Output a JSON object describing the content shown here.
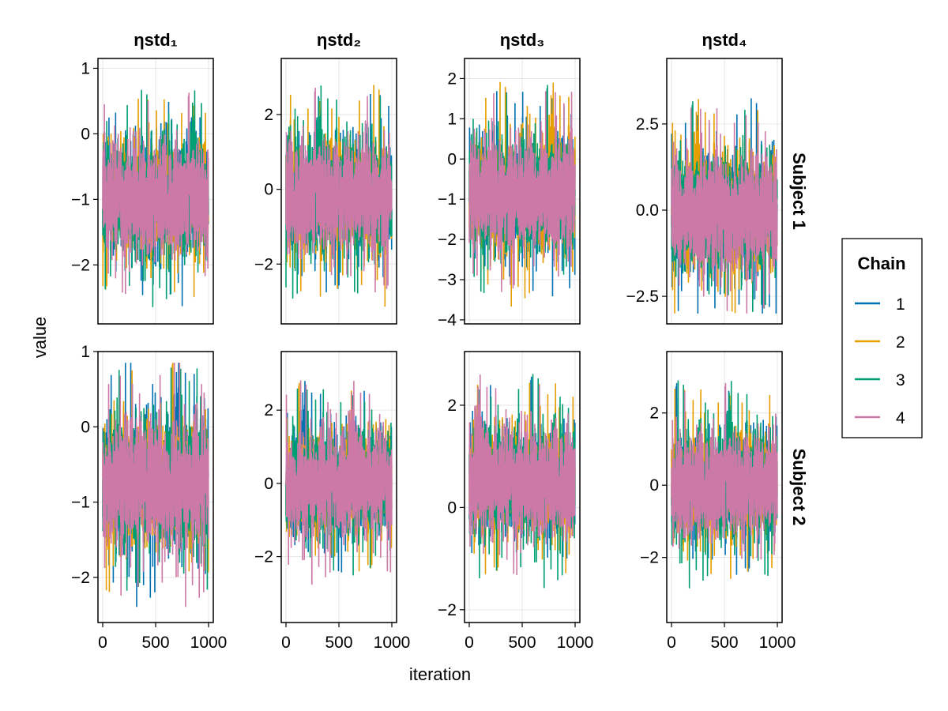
{
  "chart_data": {
    "type": "line",
    "description_free": true,
    "xlabel": "iteration",
    "ylabel": "value",
    "columns": [
      "ηstd₁",
      "ηstd₂",
      "ηstd₃",
      "ηstd₄"
    ],
    "rows": [
      "Subject 1",
      "Subject 2"
    ],
    "legend": {
      "title": "Chain",
      "position": "right",
      "entries": [
        "1",
        "2",
        "3",
        "4"
      ]
    },
    "colors": [
      "#0072b2",
      "#e69f00",
      "#009e73",
      "#cc79a7"
    ],
    "x_range": [
      0,
      1000
    ],
    "x_ticks": [
      0,
      500,
      1000
    ],
    "iterations_per_chain": 1000,
    "grid": true,
    "panels": [
      {
        "row": 0,
        "col": 0,
        "ylim": [
          -2.9,
          1.15
        ],
        "yticks": [
          1,
          0,
          -1,
          -2
        ],
        "center": -1.0,
        "spread": 0.95,
        "max": 0.98,
        "min": -2.7
      },
      {
        "row": 0,
        "col": 1,
        "ylim": [
          -3.6,
          3.5
        ],
        "yticks": [
          2,
          0,
          -2
        ],
        "center": -0.2,
        "spread": 1.7,
        "max": 3.2,
        "min": -3.3
      },
      {
        "row": 0,
        "col": 2,
        "ylim": [
          -4.1,
          2.5
        ],
        "yticks": [
          2,
          1,
          0,
          -1,
          -2,
          -3,
          -4
        ],
        "center": -0.9,
        "spread": 1.6,
        "max": 2.2,
        "min": -3.8
      },
      {
        "row": 0,
        "col": 3,
        "ylim": [
          -3.3,
          4.4
        ],
        "yticks": [
          2.5,
          0.0,
          -2.5
        ],
        "center": -0.1,
        "spread": 1.9,
        "max": 3.9,
        "min": -3.0
      },
      {
        "row": 1,
        "col": 0,
        "ylim": [
          -2.6,
          1.0
        ],
        "yticks": [
          1,
          0,
          -1,
          -2
        ],
        "center": -0.75,
        "spread": 0.95,
        "max": 0.85,
        "min": -2.45
      },
      {
        "row": 1,
        "col": 1,
        "ylim": [
          -3.8,
          3.6
        ],
        "yticks": [
          2,
          0,
          -2
        ],
        "center": 0.0,
        "spread": 1.6,
        "max": 3.3,
        "min": -3.3
      },
      {
        "row": 1,
        "col": 2,
        "ylim": [
          -2.25,
          3.05
        ],
        "yticks": [
          2,
          0,
          -2
        ],
        "center": 0.5,
        "spread": 1.2,
        "max": 2.85,
        "min": -1.95
      },
      {
        "row": 1,
        "col": 3,
        "ylim": [
          -3.8,
          3.7
        ],
        "yticks": [
          2,
          0,
          -2
        ],
        "center": 0.0,
        "spread": 1.65,
        "max": 3.4,
        "min": -3.4
      }
    ]
  }
}
